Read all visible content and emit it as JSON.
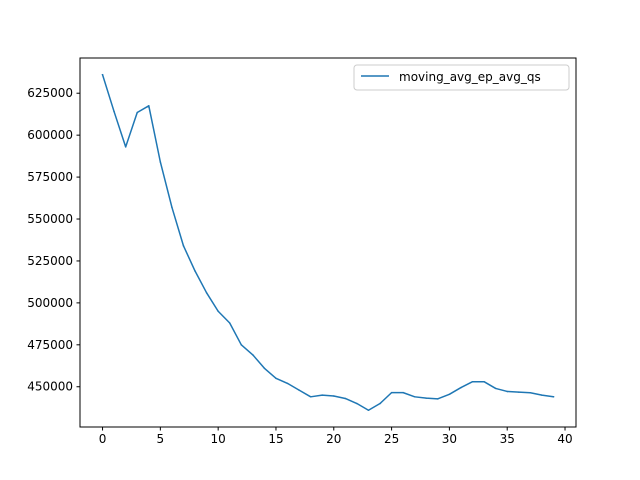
{
  "chart_data": {
    "type": "line",
    "title": "",
    "xlabel": "",
    "ylabel": "",
    "xlim": [
      -1.95,
      40.95
    ],
    "ylim": [
      426000,
      646000
    ],
    "xticks": [
      0,
      5,
      10,
      15,
      20,
      25,
      30,
      35,
      40
    ],
    "yticks": [
      450000,
      475000,
      500000,
      525000,
      550000,
      575000,
      600000,
      625000
    ],
    "xtick_labels": [
      "0",
      "5",
      "10",
      "15",
      "20",
      "25",
      "30",
      "35",
      "40"
    ],
    "ytick_labels": [
      "450000",
      "475000",
      "500000",
      "525000",
      "550000",
      "575000",
      "600000",
      "625000"
    ],
    "grid": false,
    "legend_position": "upper right",
    "series": [
      {
        "name": "moving_avg_ep_avg_qs",
        "color": "#1f77b4",
        "x": [
          0,
          1,
          2,
          3,
          4,
          5,
          6,
          7,
          8,
          9,
          10,
          11,
          12,
          13,
          14,
          15,
          16,
          17,
          18,
          19,
          20,
          21,
          22,
          23,
          24,
          25,
          26,
          27,
          28,
          29,
          30,
          31,
          32,
          33,
          34,
          35,
          36,
          37,
          38,
          39
        ],
        "y": [
          636000,
          614000,
          593000,
          613500,
          617500,
          584000,
          557000,
          534000,
          519000,
          506000,
          495000,
          488000,
          475000,
          469000,
          461000,
          455000,
          452000,
          448000,
          444000,
          445000,
          444500,
          443000,
          440000,
          436000,
          440000,
          446500,
          446500,
          444000,
          443200,
          442800,
          445500,
          449500,
          453000,
          453000,
          449000,
          447200,
          446800,
          446400,
          445000,
          444000
        ]
      }
    ]
  }
}
